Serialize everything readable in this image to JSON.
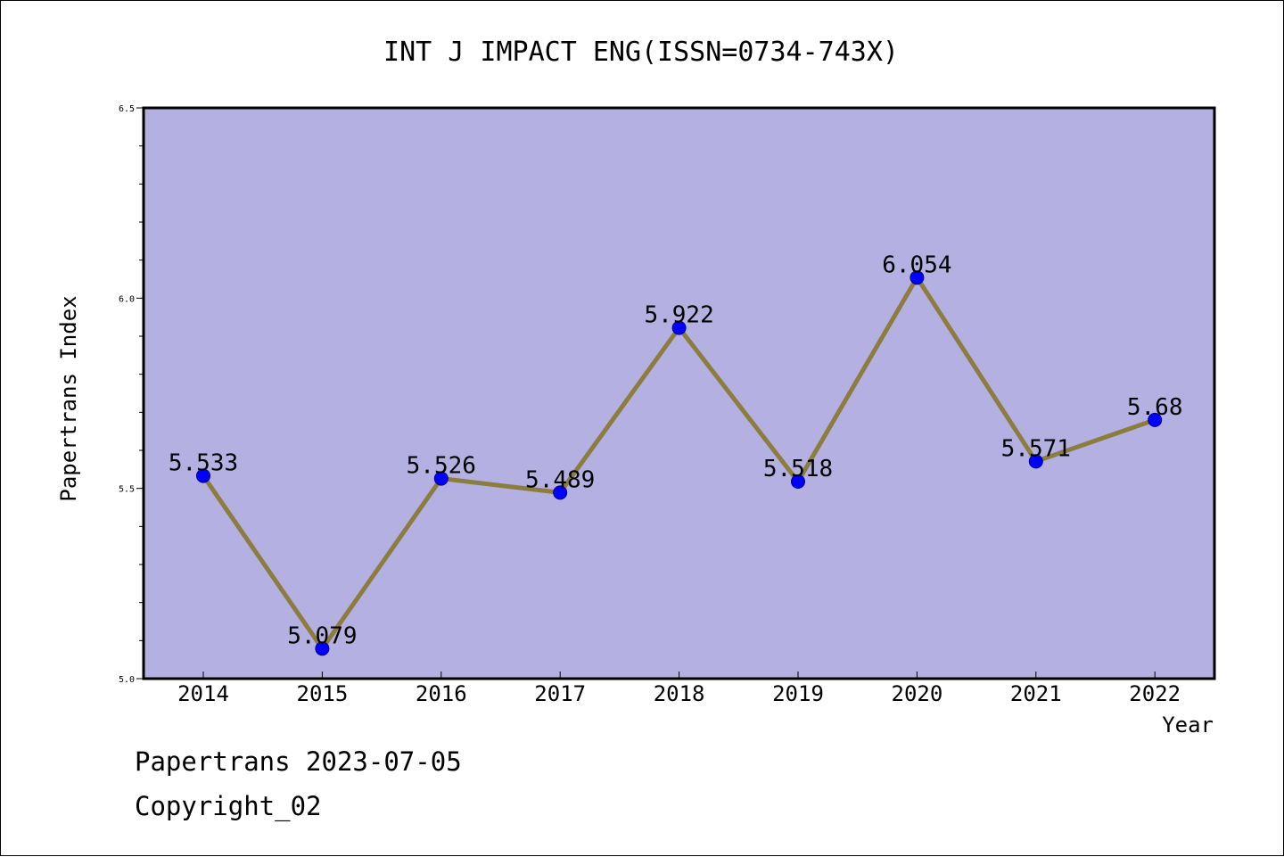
{
  "colors": {
    "plot_background": "#b5b0e2",
    "line": "#8b7d3e",
    "marker": "#0000ff",
    "marker_edge": "#000080",
    "axis": "#000000"
  },
  "chart_data": {
    "type": "line",
    "title": "INT J IMPACT ENG(ISSN=0734-743X)",
    "xlabel": "Year",
    "ylabel": "Papertrans Index",
    "categories": [
      "2014",
      "2015",
      "2016",
      "2017",
      "2018",
      "2019",
      "2020",
      "2021",
      "2022"
    ],
    "series": [
      {
        "values": [
          5.533,
          5.079,
          5.526,
          5.489,
          5.922,
          5.518,
          6.054,
          5.571,
          5.68
        ],
        "labels": [
          "5.533",
          "5.079",
          "5.526",
          "5.489",
          "5.922",
          "5.518",
          "6.054",
          "5.571",
          "5.68"
        ]
      }
    ],
    "ylim": [
      5.0,
      6.5
    ],
    "yticks": [
      "5.0",
      "5.5",
      "6.0",
      "6.5"
    ],
    "grid": false,
    "legend": "none"
  },
  "footer": {
    "line1": "Papertrans 2023-07-05",
    "line2": "Copyright_02"
  }
}
